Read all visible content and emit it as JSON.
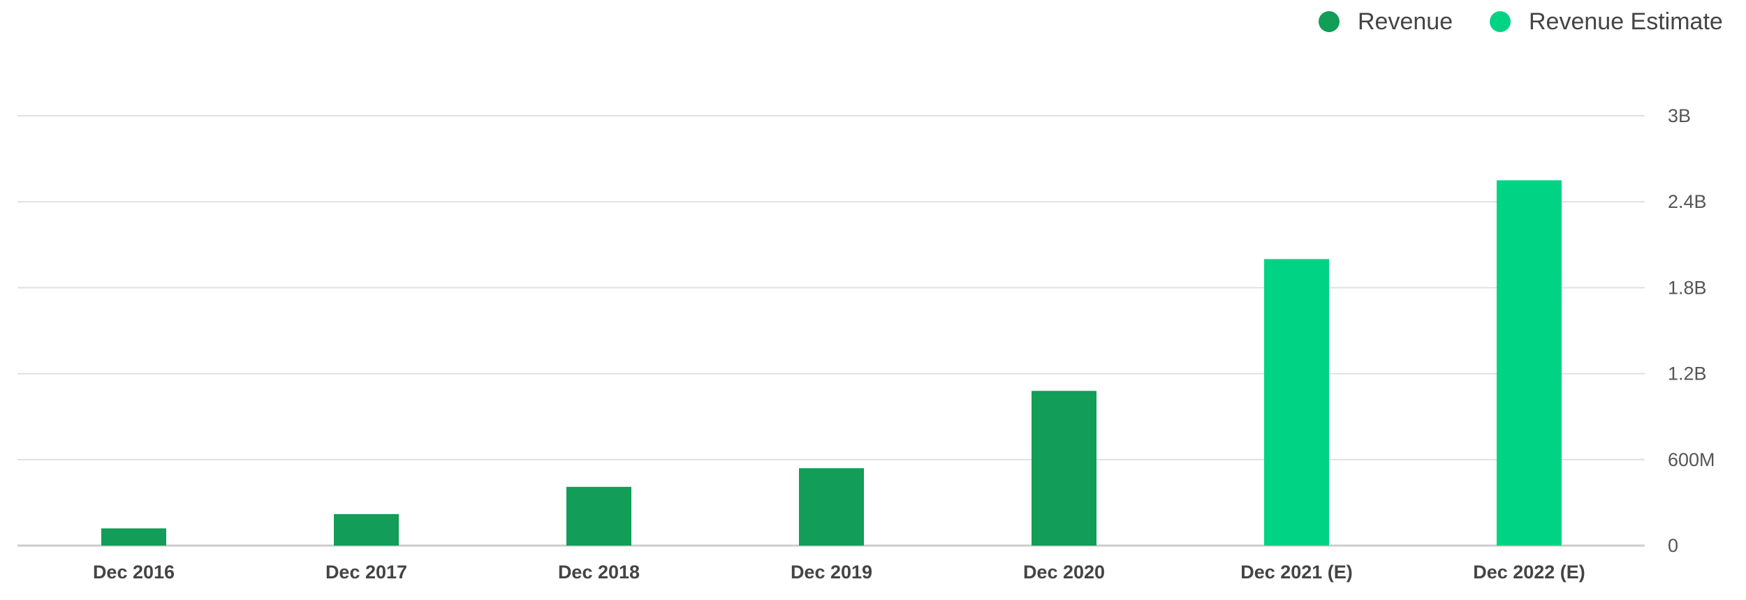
{
  "chart_data": {
    "type": "bar",
    "title": "",
    "xlabel": "",
    "ylabel": "",
    "categories": [
      "Dec 2016",
      "Dec 2017",
      "Dec 2018",
      "Dec 2019",
      "Dec 2020",
      "Dec 2021 (E)",
      "Dec 2022 (E)"
    ],
    "values": [
      120000000,
      220000000,
      410000000,
      540000000,
      1080000000,
      2000000000,
      2550000000
    ],
    "series_by_category": [
      "Revenue",
      "Revenue",
      "Revenue",
      "Revenue",
      "Revenue",
      "Revenue Estimate",
      "Revenue Estimate"
    ],
    "ylim": [
      0,
      3000000000
    ],
    "y_ticks": [
      0,
      600000000,
      1200000000,
      1800000000,
      2400000000,
      3000000000
    ],
    "y_tick_labels": [
      "0",
      "600M",
      "1.2B",
      "1.8B",
      "2.4B",
      "3B"
    ],
    "y_axis_side": "right",
    "grid": true,
    "legend_position": "top-right",
    "legend": [
      {
        "name": "Revenue",
        "color": "#129d58"
      },
      {
        "name": "Revenue Estimate",
        "color": "#00d484"
      }
    ],
    "colors": {
      "Revenue": "#129d58",
      "Revenue Estimate": "#00d484",
      "grid": "#e0e0e0",
      "tick_text": "#555555",
      "category_text": "#444444",
      "legend_text": "#444444"
    }
  }
}
